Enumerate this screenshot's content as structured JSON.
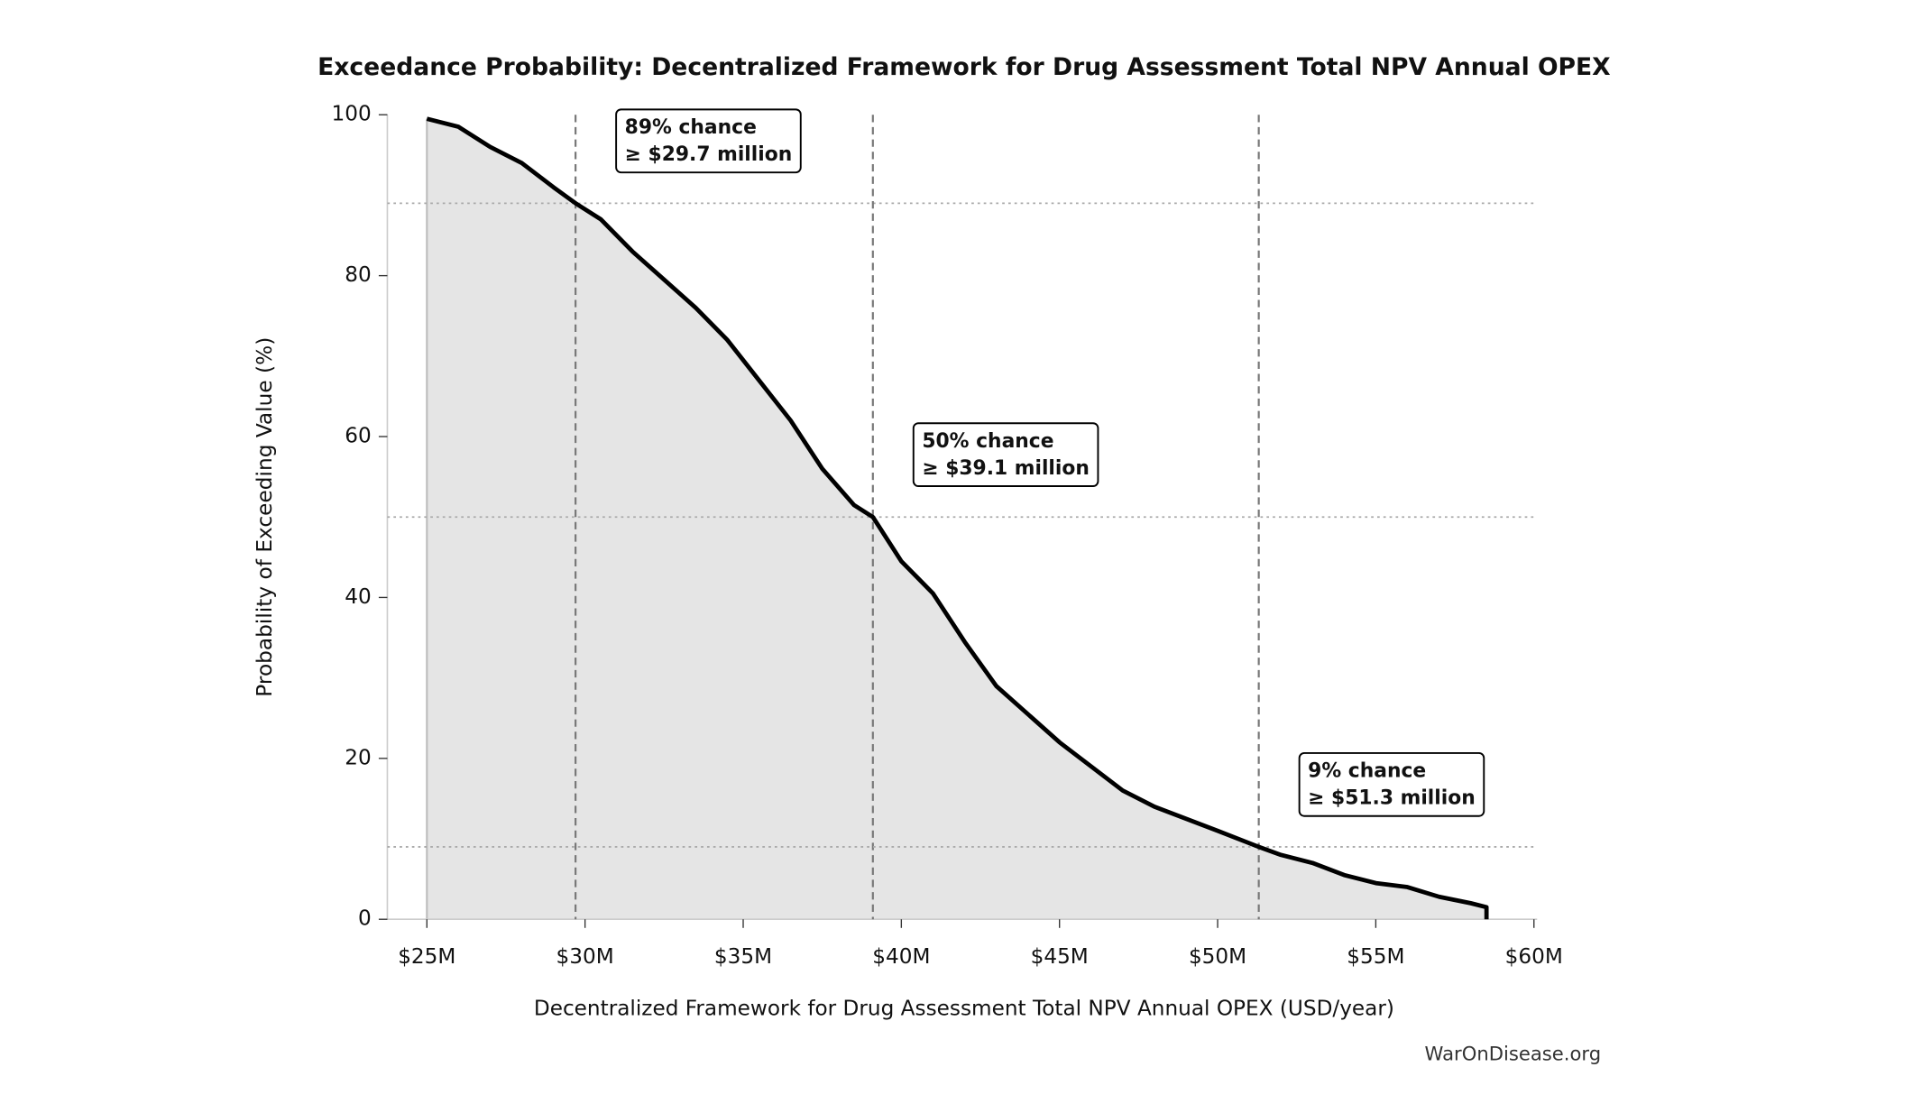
{
  "chart_data": {
    "type": "line",
    "title": "Exceedance Probability: Decentralized Framework for Drug Assessment Total NPV Annual OPEX",
    "xlabel": "Decentralized Framework for Drug Assessment Total NPV Annual OPEX (USD/year)",
    "ylabel": "Probability of Exceeding Value (%)",
    "source": "WarOnDisease.org",
    "x": [
      25.0,
      26,
      27,
      28,
      29,
      29.7,
      30.5,
      31.5,
      32.5,
      33.5,
      34.5,
      35.5,
      36.5,
      37.5,
      38.5,
      39.1,
      40,
      41,
      42,
      43,
      44,
      45,
      46,
      47,
      48,
      49,
      50,
      51.3,
      52,
      53,
      54,
      55,
      56,
      57,
      58,
      58.5,
      58.5
    ],
    "values": [
      99.5,
      98.5,
      96,
      94,
      91,
      89,
      87,
      83,
      79.5,
      76,
      72,
      67,
      62,
      56,
      51.5,
      50,
      44.5,
      40.5,
      34.5,
      29,
      25.5,
      22,
      19,
      16,
      14,
      12.5,
      11,
      9,
      8,
      7,
      5.5,
      4.5,
      4,
      2.8,
      2,
      1.5,
      0
    ],
    "color": "#000000",
    "fill_color": "#e5e5e5",
    "xlim": [
      23.75,
      60.1
    ],
    "ylim": [
      0,
      100
    ],
    "xticks": [
      {
        "value": 25,
        "label": "$25M"
      },
      {
        "value": 30,
        "label": "$30M"
      },
      {
        "value": 35,
        "label": "$35M"
      },
      {
        "value": 40,
        "label": "$40M"
      },
      {
        "value": 45,
        "label": "$45M"
      },
      {
        "value": 50,
        "label": "$50M"
      },
      {
        "value": 55,
        "label": "$55M"
      },
      {
        "value": 60,
        "label": "$60M"
      }
    ],
    "yticks": [
      0,
      20,
      40,
      60,
      80,
      100
    ],
    "annotations": [
      {
        "x": 29.7,
        "y": 89,
        "text": [
          "89% chance",
          "≥ $29.7 million"
        ]
      },
      {
        "x": 39.1,
        "y": 50,
        "text": [
          "50% chance",
          "≥ $39.1 million"
        ]
      },
      {
        "x": 51.3,
        "y": 9,
        "text": [
          "9% chance",
          "≥ $51.3 million"
        ]
      }
    ]
  }
}
